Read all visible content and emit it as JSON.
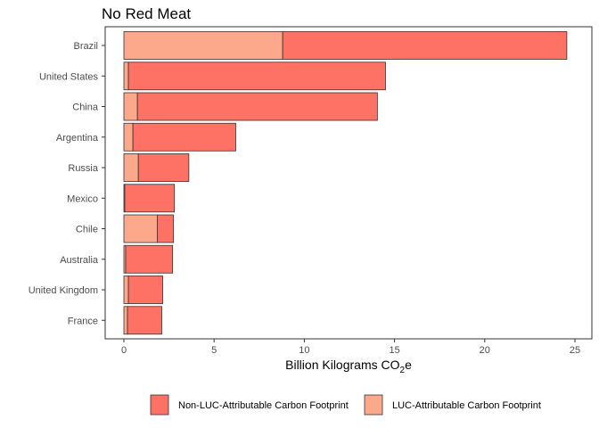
{
  "chart_data": {
    "type": "bar",
    "orientation": "horizontal",
    "stacked": true,
    "title": "No Red Meat",
    "xlabel_main": "Billion Kilograms CO",
    "xlabel_sub": "2",
    "xlabel_tail": "e",
    "ylabel": "",
    "xlim": [
      0,
      25
    ],
    "x_ticks": [
      0,
      5,
      10,
      15,
      20,
      25
    ],
    "categories": [
      "Brazil",
      "United States",
      "China",
      "Argentina",
      "Russia",
      "Mexico",
      "Chile",
      "Australia",
      "United Kingdom",
      "France"
    ],
    "series": [
      {
        "name": "LUC-Attributable Carbon Footprint",
        "color": "#fca88b",
        "values": [
          8.8,
          0.25,
          0.75,
          0.5,
          0.8,
          0.05,
          1.85,
          0.1,
          0.25,
          0.2
        ]
      },
      {
        "name": "Non-LUC-Attributable Carbon Footprint",
        "color": "#fe7165",
        "values": [
          15.75,
          14.25,
          13.3,
          5.7,
          2.8,
          2.75,
          0.9,
          2.6,
          1.9,
          1.9
        ]
      }
    ],
    "legend_order": [
      1,
      0
    ],
    "legend_position": "bottom",
    "grid": false,
    "panel_border": true
  }
}
